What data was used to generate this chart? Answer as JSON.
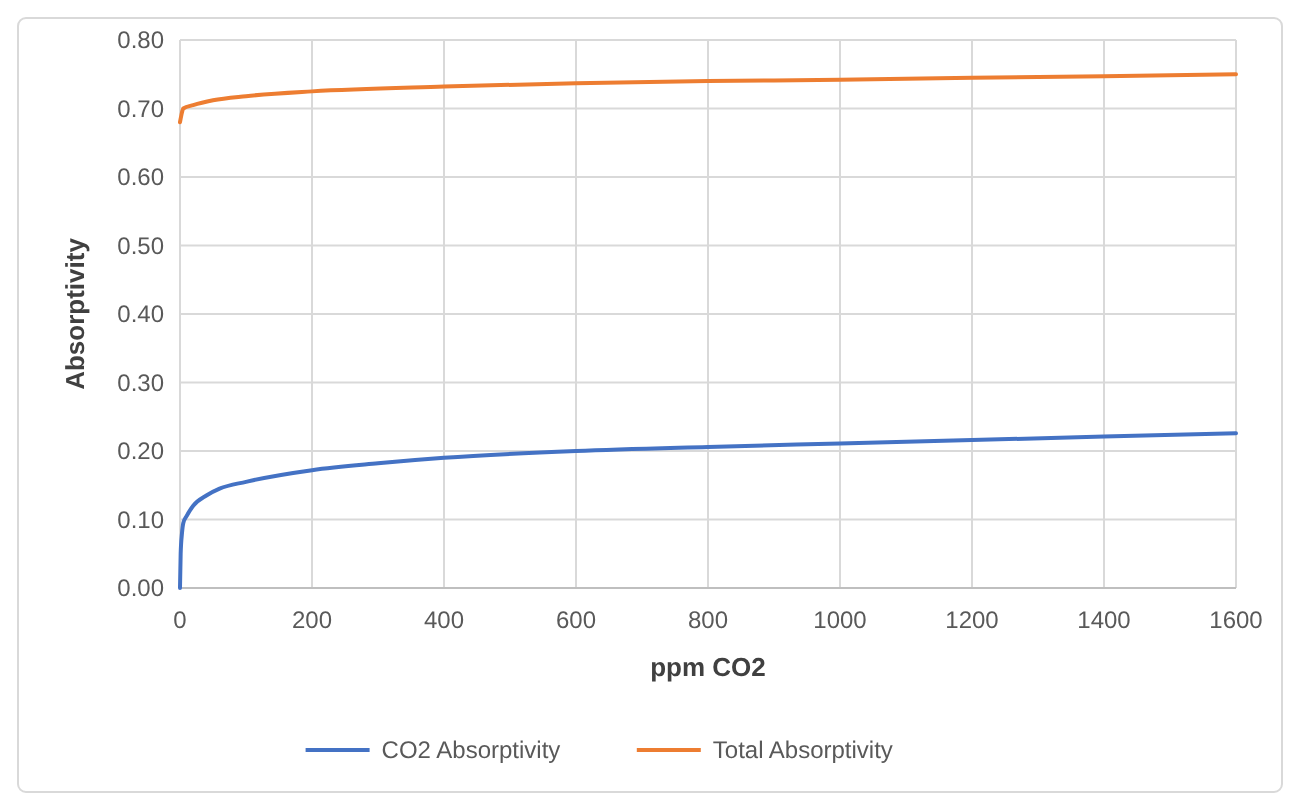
{
  "chart_data": {
    "type": "line",
    "xlabel": "ppm CO2",
    "ylabel": "Absorptivity",
    "xlim": [
      0,
      1600
    ],
    "xticks": [
      0,
      200,
      400,
      600,
      800,
      1000,
      1200,
      1400,
      1600
    ],
    "ylim": [
      0,
      0.8
    ],
    "yticks": [
      {
        "value": 0,
        "label": "0.00"
      },
      {
        "value": 0.1,
        "label": "0.10"
      },
      {
        "value": 0.2,
        "label": "0.20"
      },
      {
        "value": 0.3,
        "label": "0.30"
      },
      {
        "value": 0.4,
        "label": "0.40"
      },
      {
        "value": 0.5,
        "label": "0.50"
      },
      {
        "value": 0.6,
        "label": "0.60"
      },
      {
        "value": 0.7,
        "label": "0.70"
      },
      {
        "value": 0.8,
        "label": "0.80"
      }
    ],
    "grid": true,
    "legend": "bottom",
    "marker": "none",
    "line_style": "solid",
    "series": [
      {
        "name": "CO2 Absorptivity",
        "color": "#4472c4",
        "x": [
          0,
          1,
          3,
          5,
          10,
          20,
          40,
          60,
          100,
          200,
          300,
          400,
          600,
          800,
          1000,
          1200,
          1400,
          1600
        ],
        "values": [
          0,
          0.05,
          0.08,
          0.095,
          0.105,
          0.12,
          0.135,
          0.145,
          0.155,
          0.172,
          0.182,
          0.19,
          0.2,
          0.206,
          0.211,
          0.216,
          0.221,
          0.226
        ]
      },
      {
        "name": "Total Absorptivity",
        "color": "#ed7d31",
        "x": [
          0,
          2,
          5,
          20,
          50,
          100,
          200,
          400,
          600,
          800,
          1000,
          1200,
          1400,
          1600
        ],
        "values": [
          0.68,
          0.69,
          0.7,
          0.705,
          0.712,
          0.718,
          0.725,
          0.732,
          0.737,
          0.74,
          0.742,
          0.745,
          0.747,
          0.75
        ]
      }
    ]
  }
}
